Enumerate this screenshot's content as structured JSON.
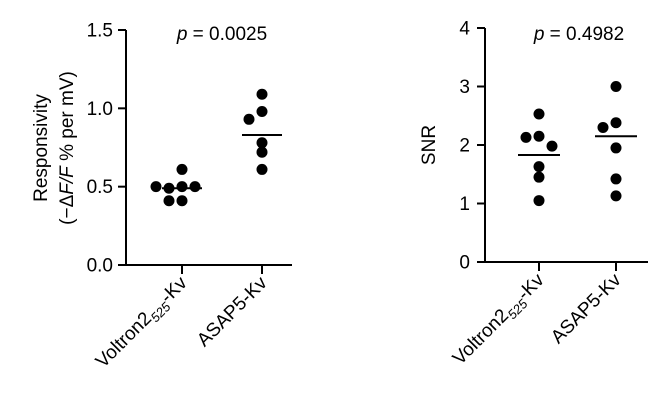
{
  "chart_data": [
    {
      "type": "scatter",
      "ylabel_line1": "Responsivity",
      "ylabel_line2_parts": [
        {
          "text": "(−Δ",
          "italic": false
        },
        {
          "text": "F/F",
          "italic": true
        },
        {
          "text": " % per mV)",
          "italic": false
        }
      ],
      "ylim": [
        0,
        1.5
      ],
      "yticks": [
        0,
        0.5,
        1.0,
        1.5
      ],
      "ytick_labels": [
        "0.0",
        "0.5",
        "1.0",
        "1.5"
      ],
      "categories": [
        {
          "parts": [
            {
              "text": "Voltron2",
              "sub": false
            },
            {
              "text": "525",
              "sub": true
            },
            {
              "text": "-Kv",
              "sub": false
            }
          ]
        },
        {
          "parts": [
            {
              "text": "ASAP5-Kv",
              "sub": false
            }
          ]
        }
      ],
      "annotation": {
        "p_symbol": "p",
        "rest": " = 0.0025"
      },
      "series": [
        {
          "values": [
            0.61,
            0.5,
            0.49,
            0.5,
            0.5,
            0.41,
            0.41
          ],
          "mean": 0.49
        },
        {
          "values": [
            1.09,
            0.98,
            0.93,
            0.78,
            0.72,
            0.61
          ],
          "mean": 0.83
        }
      ]
    },
    {
      "type": "scatter",
      "ylabel_line1": "SNR",
      "ylim": [
        0,
        4
      ],
      "yticks": [
        0,
        1,
        2,
        3,
        4
      ],
      "ytick_labels": [
        "0",
        "1",
        "2",
        "3",
        "4"
      ],
      "categories": [
        {
          "parts": [
            {
              "text": "Voltron2",
              "sub": false
            },
            {
              "text": "525",
              "sub": true
            },
            {
              "text": "-Kv",
              "sub": false
            }
          ]
        },
        {
          "parts": [
            {
              "text": "ASAP5-Kv",
              "sub": false
            }
          ]
        }
      ],
      "annotation": {
        "p_symbol": "p",
        "rest": " = 0.4982"
      },
      "series": [
        {
          "values": [
            2.53,
            2.15,
            2.13,
            1.98,
            1.63,
            1.45,
            1.05
          ],
          "mean": 1.83
        },
        {
          "values": [
            3.0,
            2.38,
            2.3,
            1.95,
            1.42,
            1.13
          ],
          "mean": 2.15
        }
      ]
    }
  ]
}
